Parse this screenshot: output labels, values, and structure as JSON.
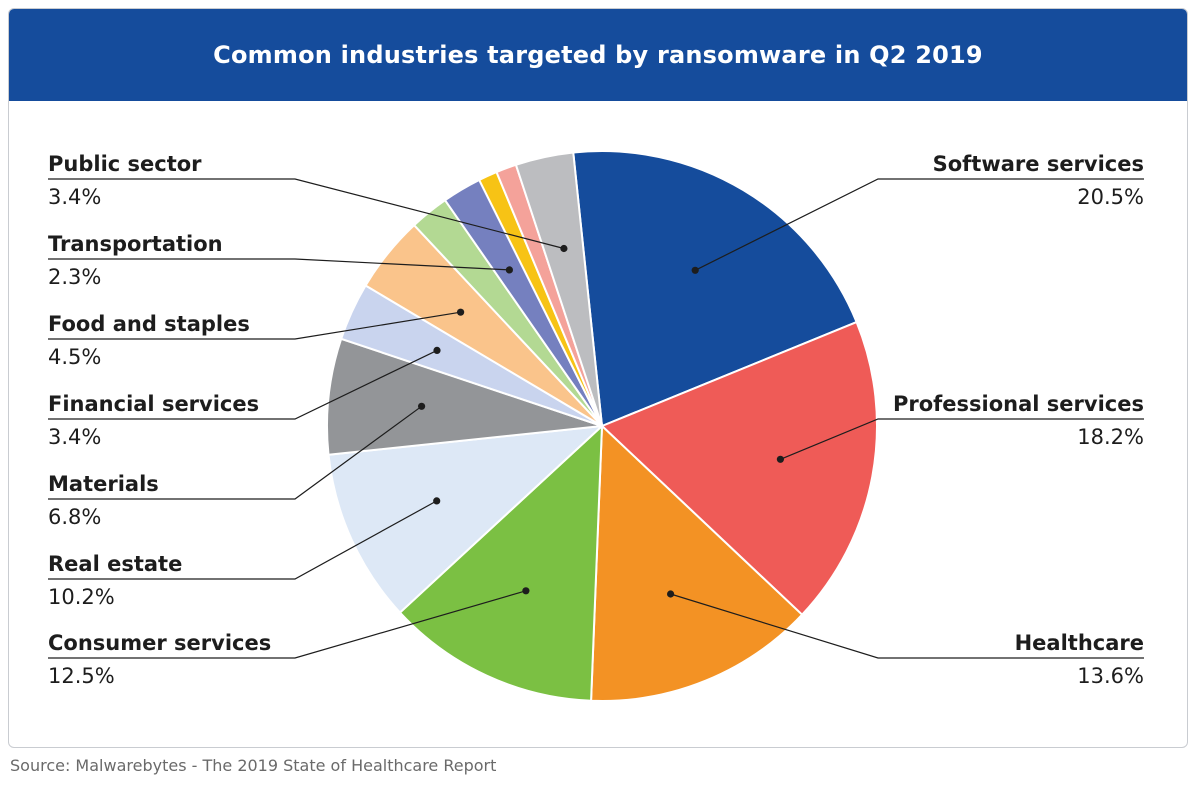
{
  "header": {
    "title": "Common industries targeted by ransomware in Q2 2019"
  },
  "source": "Source: Malwarebytes - The 2019 State of Healthcare Report",
  "chart_data": {
    "type": "pie",
    "title": "Common industries targeted by ransomware in Q2 2019",
    "start_angle_deg": -6,
    "direction": "clockwise",
    "slices": [
      {
        "name": "Software services",
        "value": 20.5,
        "label": "Software services",
        "pct": "20.5%",
        "color": "#154c9c",
        "labelled": true,
        "side": "right"
      },
      {
        "name": "Professional services",
        "value": 18.2,
        "label": "Professional services",
        "pct": "18.2%",
        "color": "#ef5b57",
        "labelled": true,
        "side": "right"
      },
      {
        "name": "Healthcare",
        "value": 13.6,
        "label": "Healthcare",
        "pct": "13.6%",
        "color": "#f39224",
        "labelled": true,
        "side": "right"
      },
      {
        "name": "Consumer services",
        "value": 12.5,
        "label": "Consumer services",
        "pct": "12.5%",
        "color": "#7bc043",
        "labelled": true,
        "side": "left"
      },
      {
        "name": "Real estate",
        "value": 10.2,
        "label": "Real estate",
        "pct": "10.2%",
        "color": "#dde8f6",
        "labelled": true,
        "side": "left"
      },
      {
        "name": "Materials",
        "value": 6.8,
        "label": "Materials",
        "pct": "6.8%",
        "color": "#939598",
        "labelled": true,
        "side": "left"
      },
      {
        "name": "Financial services",
        "value": 3.4,
        "label": "Financial services",
        "pct": "3.4%",
        "color": "#c9d4ee",
        "labelled": true,
        "side": "left"
      },
      {
        "name": "Food and staples",
        "value": 4.5,
        "label": "Food and staples",
        "pct": "4.5%",
        "color": "#fac48b",
        "labelled": true,
        "side": "left"
      },
      {
        "name": "",
        "value": 2.3,
        "label": "",
        "pct": "",
        "color": "#b3d993",
        "labelled": false
      },
      {
        "name": "Transportation",
        "value": 2.3,
        "label": "Transportation",
        "pct": "2.3%",
        "color": "#7580bf",
        "labelled": true,
        "side": "left"
      },
      {
        "name": "",
        "value": 1.1,
        "label": "",
        "pct": "",
        "color": "#f7c315",
        "labelled": false
      },
      {
        "name": "",
        "value": 1.2,
        "label": "",
        "pct": "",
        "color": "#f4a29a",
        "labelled": false
      },
      {
        "name": "Public sector",
        "value": 3.4,
        "label": "Public sector",
        "pct": "3.4%",
        "color": "#bcbdc0",
        "labelled": true,
        "side": "left"
      }
    ]
  }
}
